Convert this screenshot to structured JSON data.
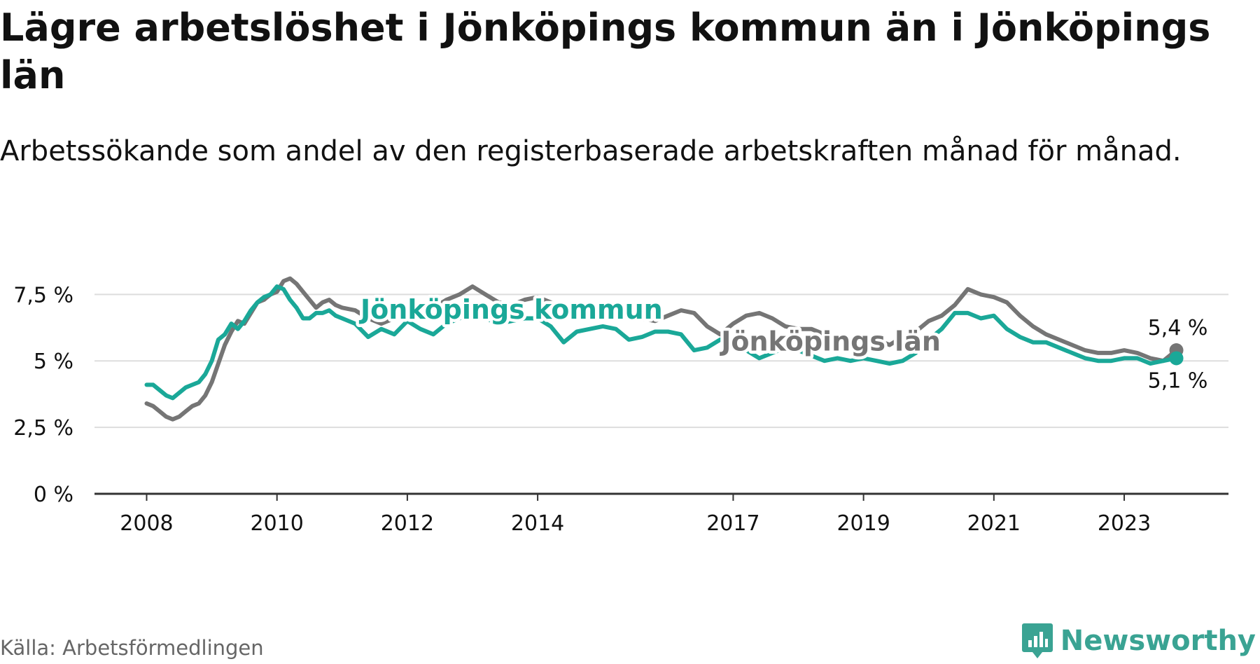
{
  "title": "Lägre arbetslöshet i Jönköpings kommun än i Jönköpings län",
  "subtitle": "Arbetssökande som andel av den registerbaserade arbetskraften månad för månad.",
  "source": "Källa: Arbetsförmedlingen",
  "brand": {
    "name": "Newsworthy",
    "icon": "newsworthy-logo-icon"
  },
  "colors": {
    "kommun": "#1aa898",
    "lan": "#757575",
    "grid": "#dddddd",
    "axis": "#333333",
    "text": "#111111"
  },
  "chart_data": {
    "type": "line",
    "title": "Lägre arbetslöshet i Jönköpings kommun än i Jönköpings län",
    "xlabel": "",
    "ylabel": "",
    "ylim": [
      0,
      8.3
    ],
    "xlim": [
      2007.2,
      2024.6
    ],
    "grid": true,
    "y_ticks": [
      {
        "value": 0,
        "label": "0 %"
      },
      {
        "value": 2.5,
        "label": "2,5 %"
      },
      {
        "value": 5,
        "label": "5 %"
      },
      {
        "value": 7.5,
        "label": "7,5 %"
      }
    ],
    "x_ticks": [
      {
        "value": 2008,
        "label": "2008"
      },
      {
        "value": 2010,
        "label": "2010"
      },
      {
        "value": 2012,
        "label": "2012"
      },
      {
        "value": 2014,
        "label": "2014"
      },
      {
        "value": 2017,
        "label": "2017"
      },
      {
        "value": 2019,
        "label": "2019"
      },
      {
        "value": 2021,
        "label": "2021"
      },
      {
        "value": 2023,
        "label": "2023"
      }
    ],
    "series": [
      {
        "name": "Jönköpings län",
        "color": "#757575",
        "end_label": "5,4 %",
        "x": [
          2008.0,
          2008.1,
          2008.2,
          2008.3,
          2008.4,
          2008.5,
          2008.6,
          2008.7,
          2008.8,
          2008.9,
          2009.0,
          2009.1,
          2009.2,
          2009.3,
          2009.4,
          2009.5,
          2009.6,
          2009.7,
          2009.8,
          2009.9,
          2010.0,
          2010.1,
          2010.2,
          2010.3,
          2010.4,
          2010.5,
          2010.6,
          2010.7,
          2010.8,
          2010.9,
          2011.0,
          2011.2,
          2011.4,
          2011.6,
          2011.8,
          2012.0,
          2012.2,
          2012.4,
          2012.6,
          2012.8,
          2013.0,
          2013.2,
          2013.4,
          2013.6,
          2013.8,
          2014.0,
          2014.2,
          2014.4,
          2014.6,
          2014.8,
          2015.0,
          2015.2,
          2015.4,
          2015.6,
          2015.8,
          2016.0,
          2016.2,
          2016.4,
          2016.6,
          2016.8,
          2017.0,
          2017.2,
          2017.4,
          2017.6,
          2017.8,
          2018.0,
          2018.2,
          2018.4,
          2018.6,
          2018.8,
          2019.0,
          2019.2,
          2019.4,
          2019.6,
          2019.8,
          2020.0,
          2020.2,
          2020.4,
          2020.6,
          2020.8,
          2021.0,
          2021.2,
          2021.4,
          2021.6,
          2021.8,
          2022.0,
          2022.2,
          2022.4,
          2022.6,
          2022.8,
          2023.0,
          2023.2,
          2023.4,
          2023.6,
          2023.8
        ],
        "values": [
          3.4,
          3.3,
          3.1,
          2.9,
          2.8,
          2.9,
          3.1,
          3.3,
          3.4,
          3.7,
          4.2,
          4.9,
          5.6,
          6.1,
          6.5,
          6.4,
          6.8,
          7.2,
          7.3,
          7.5,
          7.6,
          8.0,
          8.1,
          7.9,
          7.6,
          7.3,
          7.0,
          7.2,
          7.3,
          7.1,
          7.0,
          6.9,
          6.6,
          6.4,
          6.6,
          7.0,
          7.1,
          7.0,
          7.3,
          7.5,
          7.8,
          7.5,
          7.2,
          7.1,
          7.3,
          7.4,
          7.2,
          6.9,
          6.6,
          6.6,
          6.8,
          6.9,
          6.8,
          6.6,
          6.5,
          6.7,
          6.9,
          6.8,
          6.3,
          6.0,
          6.4,
          6.7,
          6.8,
          6.6,
          6.3,
          6.2,
          6.2,
          6.0,
          5.9,
          5.8,
          5.7,
          5.8,
          5.6,
          5.9,
          6.1,
          6.5,
          6.7,
          7.1,
          7.7,
          7.5,
          7.4,
          7.2,
          6.7,
          6.3,
          6.0,
          5.8,
          5.6,
          5.4,
          5.3,
          5.3,
          5.4,
          5.3,
          5.1,
          5.0,
          5.4
        ]
      },
      {
        "name": "Jönköpings kommun",
        "color": "#1aa898",
        "end_label": "5,1 %",
        "x": [
          2008.0,
          2008.1,
          2008.2,
          2008.3,
          2008.4,
          2008.5,
          2008.6,
          2008.7,
          2008.8,
          2008.9,
          2009.0,
          2009.1,
          2009.2,
          2009.3,
          2009.4,
          2009.5,
          2009.6,
          2009.7,
          2009.8,
          2009.9,
          2010.0,
          2010.1,
          2010.2,
          2010.3,
          2010.4,
          2010.5,
          2010.6,
          2010.7,
          2010.8,
          2010.9,
          2011.0,
          2011.2,
          2011.4,
          2011.6,
          2011.8,
          2012.0,
          2012.2,
          2012.4,
          2012.6,
          2012.8,
          2013.0,
          2013.2,
          2013.4,
          2013.6,
          2013.8,
          2014.0,
          2014.2,
          2014.4,
          2014.6,
          2014.8,
          2015.0,
          2015.2,
          2015.4,
          2015.6,
          2015.8,
          2016.0,
          2016.2,
          2016.4,
          2016.6,
          2016.8,
          2017.0,
          2017.2,
          2017.4,
          2017.6,
          2017.8,
          2018.0,
          2018.2,
          2018.4,
          2018.6,
          2018.8,
          2019.0,
          2019.2,
          2019.4,
          2019.6,
          2019.8,
          2020.0,
          2020.2,
          2020.4,
          2020.6,
          2020.8,
          2021.0,
          2021.2,
          2021.4,
          2021.6,
          2021.8,
          2022.0,
          2022.2,
          2022.4,
          2022.6,
          2022.8,
          2023.0,
          2023.2,
          2023.4,
          2023.6,
          2023.8
        ],
        "values": [
          4.1,
          4.1,
          3.9,
          3.7,
          3.6,
          3.8,
          4.0,
          4.1,
          4.2,
          4.5,
          5.0,
          5.8,
          6.0,
          6.4,
          6.2,
          6.5,
          6.9,
          7.2,
          7.4,
          7.5,
          7.8,
          7.7,
          7.3,
          7.0,
          6.6,
          6.6,
          6.8,
          6.8,
          6.9,
          6.7,
          6.6,
          6.4,
          5.9,
          6.2,
          6.0,
          6.5,
          6.2,
          6.0,
          6.4,
          6.6,
          6.8,
          6.6,
          6.4,
          6.5,
          6.6,
          6.6,
          6.3,
          5.7,
          6.1,
          6.2,
          6.3,
          6.2,
          5.8,
          5.9,
          6.1,
          6.1,
          6.0,
          5.4,
          5.5,
          5.8,
          5.8,
          5.4,
          5.1,
          5.3,
          5.5,
          5.4,
          5.2,
          5.0,
          5.1,
          5.0,
          5.1,
          5.0,
          4.9,
          5.0,
          5.3,
          5.8,
          6.2,
          6.8,
          6.8,
          6.6,
          6.7,
          6.2,
          5.9,
          5.7,
          5.7,
          5.5,
          5.3,
          5.1,
          5.0,
          5.0,
          5.1,
          5.1,
          4.9,
          5.0,
          5.1
        ]
      }
    ],
    "labels": [
      {
        "text": "Jönköpings kommun",
        "series": "Jönköpings kommun",
        "x": 2013.6,
        "y": 6.9
      },
      {
        "text": "Jönköpings län",
        "series": "Jönköpings län",
        "x": 2018.5,
        "y": 5.7
      }
    ]
  }
}
